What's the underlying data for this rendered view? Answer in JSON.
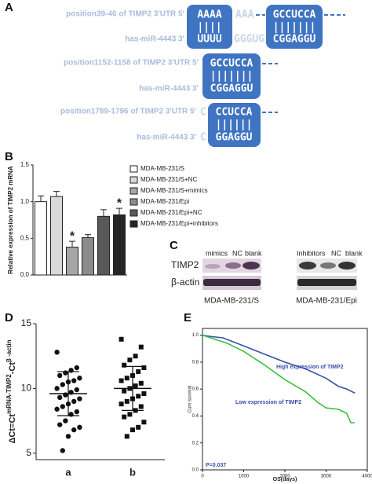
{
  "panel_a": {
    "label": "A",
    "rows": [
      {
        "utr": "position39-46 of TIMP2 3'UTR 5'",
        "mirna": "has-miR-4443 3'",
        "top": [
          "AAAA",
          "AAA",
          "GCCUCCA"
        ],
        "bottom": [
          "UUUU",
          "GGGUG",
          "CGGAGGU"
        ]
      },
      {
        "utr": "position1152-1158 of TIMP2 3'UTR 5'",
        "mirna": "has-miR-4443 3'",
        "top": [
          "GCCUCCA"
        ],
        "bottom": [
          "CGGAGGU"
        ]
      },
      {
        "utr": "position1789-1796 of TIMP2 3'UTR 5'",
        "mirna": "has-miR-4443 3'",
        "top": [
          "C",
          "CCUCCA"
        ],
        "bottom": [
          "C",
          "GGAGGU"
        ]
      }
    ]
  },
  "panel_c": {
    "label": "C",
    "rows": [
      "TIMP2",
      "β-actin"
    ],
    "lanes_left": [
      "mimics",
      "NC",
      "blank"
    ],
    "lanes_right": [
      "Inhibitors",
      "NC",
      "blank"
    ],
    "group_left": "MDA-MB-231/S",
    "group_right": "MDA-MB-231/Epi"
  },
  "chart_data": [
    {
      "type": "bar",
      "panel_label": "B",
      "y_label": "Relative expression of TIMP2 mRNA",
      "categories": [
        "MDA-MB-231/S",
        "MDA-MB-231/S+NC",
        "MDA-MB-231/S+mimics",
        "MDA-MB-231/Epi",
        "MDA-MB-231/Epi+NC",
        "MDA-MB-231/Epi+inhibitors"
      ],
      "values": [
        1.0,
        1.07,
        0.38,
        0.51,
        0.8,
        0.82
      ],
      "errors": [
        0.08,
        0.07,
        0.08,
        0.04,
        0.09,
        0.09
      ],
      "colors": [
        "#ffffff",
        "#d9d9d9",
        "#a6a6a6",
        "#8c8c8c",
        "#595959",
        "#262626"
      ],
      "markers": [
        null,
        null,
        "*",
        null,
        null,
        "*"
      ],
      "ylim": [
        0,
        1.5
      ],
      "yticks": [
        {
          "value": 0,
          "label": "0.0"
        },
        0.5,
        {
          "value": 1,
          "label": "1.0"
        },
        1.5
      ],
      "legend": "upper right"
    },
    {
      "type": "dot",
      "panel_label": "D",
      "y_label": "ΔCt=Ct",
      "y_label_sup": "mRNA-TIMP2",
      "y_label_mid": "-Ct",
      "y_label_sup2": "β -actin",
      "categories": [
        "a",
        "b"
      ],
      "points": [
        [
          12.8,
          11.6,
          11.4,
          11.2,
          11.0,
          10.8,
          10.6,
          10.5,
          10.3,
          10.0,
          9.9,
          9.7,
          9.5,
          9.3,
          9.2,
          9.0,
          8.8,
          8.6,
          8.4,
          8.2,
          8.0,
          7.5,
          7.2,
          7.0,
          6.8,
          6.3,
          5.2
        ],
        [
          13.8,
          13.2,
          12.5,
          12.2,
          11.8,
          11.6,
          11.3,
          11.0,
          10.8,
          10.6,
          10.4,
          10.2,
          10.0,
          9.8,
          9.6,
          9.4,
          9.2,
          9.0,
          8.8,
          8.6,
          8.3,
          8.0,
          7.8,
          7.4,
          7.0,
          6.8,
          6.3
        ]
      ],
      "markers": [
        "circle",
        "square"
      ],
      "mean": [
        9.6,
        10.0
      ],
      "sd": [
        1.7,
        1.7
      ],
      "ylim": [
        4.5,
        15
      ],
      "yticks": [
        5,
        10,
        15
      ]
    },
    {
      "type": "line",
      "panel_label": "E",
      "x_label": "OS(days)",
      "y_label": "Cum survival",
      "series": [
        {
          "name": "High expression of TIMP2",
          "color": "#3a4fa8",
          "x": [
            0,
            200,
            500,
            1000,
            1500,
            2000,
            2500,
            3000,
            3300,
            3500,
            3700
          ],
          "values": [
            1.0,
            0.99,
            0.98,
            0.92,
            0.86,
            0.8,
            0.75,
            0.68,
            0.62,
            0.6,
            0.57
          ]
        },
        {
          "name": "Low expression of TIMP2",
          "color": "#3cbf3c",
          "x": [
            0,
            300,
            600,
            1000,
            1500,
            2000,
            2500,
            2800,
            3000,
            3300,
            3500,
            3600,
            3700
          ],
          "values": [
            1.0,
            0.97,
            0.94,
            0.88,
            0.78,
            0.67,
            0.58,
            0.5,
            0.46,
            0.45,
            0.42,
            0.35,
            0.35
          ]
        }
      ],
      "annotation": "P=0.037",
      "xlim": [
        0,
        4000
      ],
      "xticks": [
        0,
        1000,
        2000,
        3000,
        4000
      ],
      "ylim": [
        0,
        1.05
      ],
      "yticks": [
        {
          "value": 0,
          "label": "0.0"
        },
        0.2,
        0.4,
        0.6,
        0.8,
        {
          "value": 1,
          "label": "1.0"
        }
      ]
    }
  ]
}
